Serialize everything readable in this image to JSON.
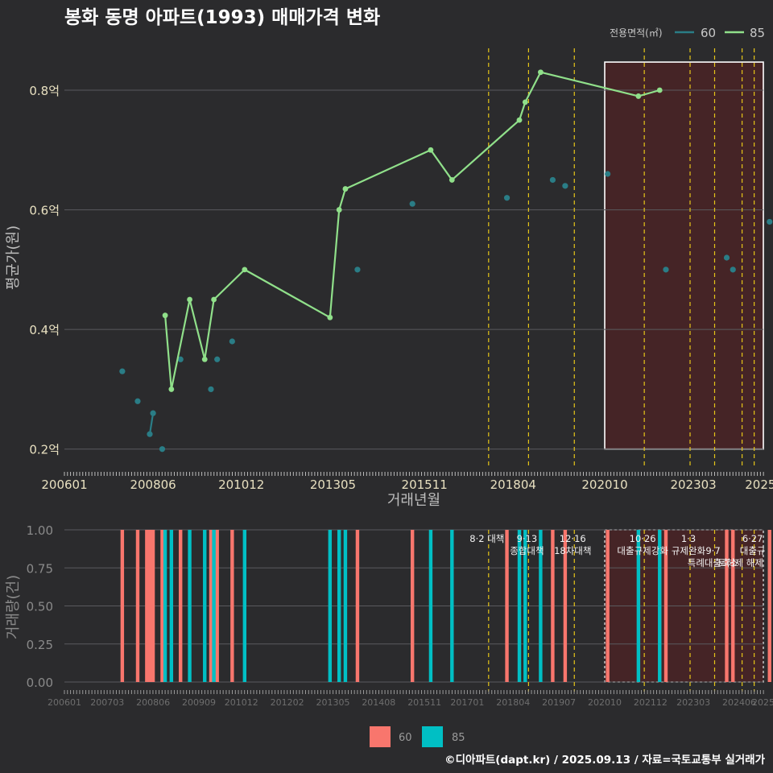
{
  "title": "봉화 동명 아파트(1993) 매매가격 변화",
  "footer": "©디아파트(dapt.kr) / 2025.09.13 / 자료=국토교통부 실거래가",
  "colors": {
    "background": "#2b2b2d",
    "grid": "#5a5a5e",
    "series60": "#2a7d86",
    "series85": "#90e08a",
    "bar60": "#f8766d",
    "bar85": "#00bfc4",
    "policy": "#e6c619",
    "highlight": "#4a2326",
    "text": "#d8d8d8",
    "axis_text": "#e8e0c0",
    "title": "#ffffff"
  },
  "chart_data": [
    {
      "type": "line",
      "title": "봉화 동명 아파트(1993) 매매가격 변화",
      "xlabel": "거래년월",
      "ylabel": "평균가(원)",
      "legend_title": "전용면적(㎡)",
      "legend_position": "top-right",
      "x_range": [
        2006.0,
        2025.08
      ],
      "ylim": [
        0.17,
        0.87
      ],
      "yticks": [
        0.2,
        0.4,
        0.6,
        0.8
      ],
      "ytick_labels": [
        "0.2억",
        "0.4억",
        "0.6억",
        "0.8억"
      ],
      "xticks": [
        2006.0,
        2008.42,
        2010.83,
        2013.33,
        2015.83,
        2018.25,
        2020.75,
        2023.17,
        2025.0
      ],
      "xtick_labels": [
        "200601",
        "200806",
        "201012",
        "201305",
        "201511",
        "201804",
        "202010",
        "202303",
        "2025"
      ],
      "highlight_range": [
        2020.75,
        2025.08
      ],
      "policy_lines": [
        2017.58,
        2018.67,
        2019.92,
        2021.83,
        2023.08,
        2023.75,
        2024.5,
        2024.83
      ],
      "series": [
        {
          "name": "60",
          "points": [
            {
              "x": 2007.58,
              "y": 0.33
            },
            {
              "x": 2008.0,
              "y": 0.28
            },
            {
              "x": 2008.33,
              "y": 0.225
            },
            {
              "x": 2008.42,
              "y": 0.26
            },
            {
              "x": 2008.67,
              "y": 0.2
            },
            {
              "x": 2009.17,
              "y": 0.35
            },
            {
              "x": 2010.0,
              "y": 0.3
            },
            {
              "x": 2010.17,
              "y": 0.35
            },
            {
              "x": 2010.58,
              "y": 0.38
            },
            {
              "x": 2014.0,
              "y": 0.5
            },
            {
              "x": 2015.5,
              "y": 0.61
            },
            {
              "x": 2018.08,
              "y": 0.62
            },
            {
              "x": 2019.33,
              "y": 0.65
            },
            {
              "x": 2019.67,
              "y": 0.64
            },
            {
              "x": 2020.83,
              "y": 0.66
            },
            {
              "x": 2022.42,
              "y": 0.5
            },
            {
              "x": 2024.08,
              "y": 0.52
            },
            {
              "x": 2024.25,
              "y": 0.5
            },
            {
              "x": 2025.25,
              "y": 0.58
            }
          ],
          "connected_pairs": [
            [
              2,
              3
            ]
          ]
        },
        {
          "name": "85",
          "points": [
            {
              "x": 2008.75,
              "y": 0.4235
            },
            {
              "x": 2008.92,
              "y": 0.3
            },
            {
              "x": 2009.42,
              "y": 0.45
            },
            {
              "x": 2009.83,
              "y": 0.35
            },
            {
              "x": 2010.08,
              "y": 0.45
            },
            {
              "x": 2010.92,
              "y": 0.5
            },
            {
              "x": 2013.25,
              "y": 0.42
            },
            {
              "x": 2013.5,
              "y": 0.6
            },
            {
              "x": 2013.67,
              "y": 0.635
            },
            {
              "x": 2016.0,
              "y": 0.7
            },
            {
              "x": 2016.58,
              "y": 0.65
            },
            {
              "x": 2018.42,
              "y": 0.75
            },
            {
              "x": 2018.58,
              "y": 0.78
            },
            {
              "x": 2019.0,
              "y": 0.83
            },
            {
              "x": 2021.67,
              "y": 0.79
            },
            {
              "x": 2022.25,
              "y": 0.8
            }
          ]
        }
      ]
    },
    {
      "type": "bar",
      "ylabel": "거래량(건)",
      "legend_position": "bottom",
      "ylim": [
        -0.06,
        1.0
      ],
      "yticks": [
        0.0,
        0.25,
        0.5,
        0.75,
        1.0
      ],
      "ytick_labels": [
        "0.00",
        "0.25",
        "0.50",
        "0.75",
        "1.00"
      ],
      "xticks": [
        2006.0,
        2007.17,
        2008.42,
        2009.67,
        2010.83,
        2012.08,
        2013.33,
        2014.58,
        2015.83,
        2017.0,
        2018.25,
        2019.5,
        2020.75,
        2022.0,
        2023.17,
        2024.42,
        2025.08
      ],
      "xtick_labels": [
        "200601",
        "200703",
        "200806",
        "200909",
        "201012",
        "201202",
        "201305",
        "201408",
        "201511",
        "201701",
        "201804",
        "201907",
        "202010",
        "202112",
        "202303",
        "202406",
        "2025"
      ],
      "highlight_range": [
        2020.75,
        2025.08
      ],
      "policy_lines": [
        2017.58,
        2018.67,
        2019.92,
        2021.83,
        2023.08,
        2023.75,
        2024.5,
        2024.83
      ],
      "policy_labels": [
        {
          "x": 2017.58,
          "lines": [
            "8·2 대책"
          ]
        },
        {
          "x": 2018.67,
          "lines": [
            "9·13",
            "종합대책"
          ]
        },
        {
          "x": 2019.92,
          "lines": [
            "12·16",
            "18차대책"
          ]
        },
        {
          "x": 2021.83,
          "lines": [
            "10·26",
            "대출규제강화"
          ]
        },
        {
          "x": 2023.08,
          "lines": [
            "1·3",
            "규제완화"
          ]
        },
        {
          "x": 2023.75,
          "lines": [
            "",
            "9·7",
            "특례대출축소"
          ]
        },
        {
          "x": 2024.83,
          "lines": [
            "6·27",
            "대출규"
          ]
        },
        {
          "x": 2024.5,
          "lines": [
            "",
            "",
            "토허제 해제"
          ]
        }
      ],
      "series": [
        {
          "name": "60",
          "x": [
            2007.58,
            2008.0,
            2008.25,
            2008.33,
            2008.42,
            2008.67,
            2009.17,
            2010.0,
            2010.17,
            2010.58,
            2014.0,
            2015.5,
            2018.08,
            2019.33,
            2019.67,
            2020.83,
            2022.42,
            2024.08,
            2024.25,
            2025.25
          ],
          "values": [
            1,
            1,
            1,
            1,
            1,
            1,
            1,
            1,
            1,
            1,
            1,
            1,
            1,
            1,
            1,
            1,
            1,
            1,
            1,
            1
          ]
        },
        {
          "name": "85",
          "x": [
            2008.75,
            2008.92,
            2009.42,
            2009.83,
            2010.08,
            2010.92,
            2013.25,
            2013.5,
            2013.67,
            2016.0,
            2016.58,
            2018.42,
            2018.58,
            2019.0,
            2021.67,
            2022.25
          ],
          "values": [
            1,
            1,
            1,
            1,
            1,
            1,
            1,
            1,
            1,
            1,
            1,
            1,
            1,
            1,
            1,
            1
          ]
        }
      ]
    }
  ]
}
